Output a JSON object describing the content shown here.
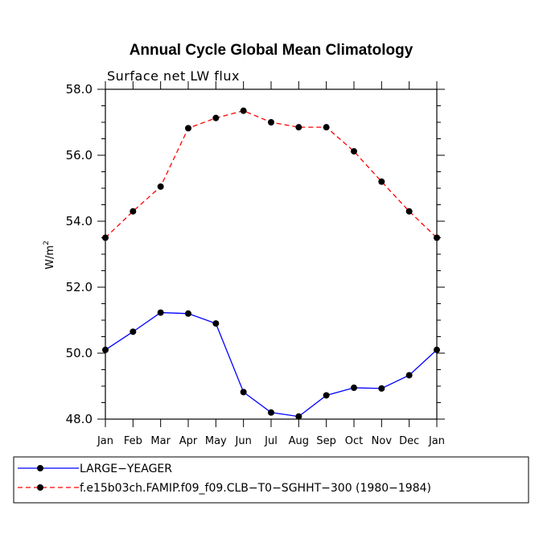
{
  "chart_data": {
    "type": "line",
    "title": "Annual Cycle Global Mean Climatology",
    "subtitle": "Surface net LW flux",
    "ylabel": "W/m",
    "ylabel_sup": "2",
    "xlabel": "",
    "categories": [
      "Jan",
      "Feb",
      "Mar",
      "Apr",
      "May",
      "Jun",
      "Jul",
      "Aug",
      "Sep",
      "Oct",
      "Nov",
      "Dec",
      "Jan"
    ],
    "ylim": [
      48.0,
      58.0
    ],
    "yticks": [
      "48.0",
      "50.0",
      "52.0",
      "54.0",
      "56.0",
      "58.0"
    ],
    "series": [
      {
        "name": "LARGE−YEAGER",
        "color": "#0000ff",
        "dash": "solid",
        "values": [
          50.1,
          50.65,
          51.23,
          51.2,
          50.9,
          48.82,
          48.2,
          48.08,
          48.72,
          48.95,
          48.93,
          49.33,
          50.1
        ]
      },
      {
        "name": "f.e15b03ch.FAMIP.f09_f09.CLB−T0−SGHHT−300 (1980−1984)",
        "color": "#ff0000",
        "dash": "dashed",
        "values": [
          53.5,
          54.3,
          55.05,
          56.82,
          57.13,
          57.35,
          57.0,
          56.85,
          56.85,
          56.12,
          55.2,
          54.3,
          53.5
        ]
      }
    ],
    "legend_position": "bottom"
  }
}
